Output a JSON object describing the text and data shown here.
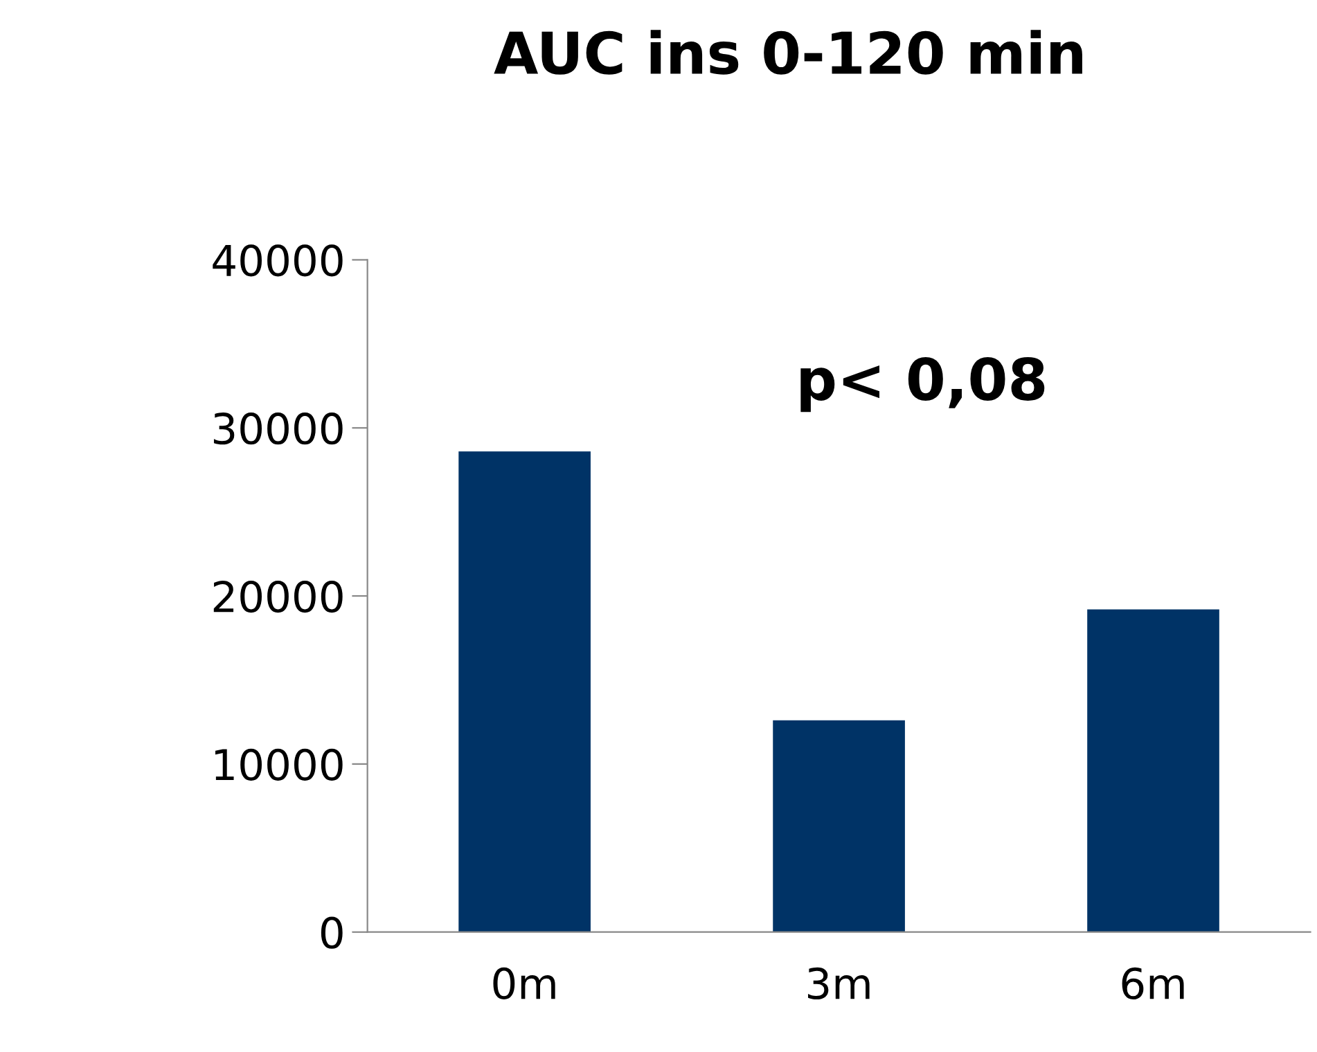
{
  "chart_data": {
    "type": "bar",
    "title": "AUC ins 0-120 min",
    "categories": [
      "0m",
      "3m",
      "6m"
    ],
    "values": [
      28600,
      12600,
      19200
    ],
    "color": "#003366",
    "ylim": [
      0,
      40000
    ],
    "yticks": [
      0,
      10000,
      20000,
      30000,
      40000
    ],
    "grid": false,
    "annotations": [
      "p< 0,08"
    ]
  }
}
